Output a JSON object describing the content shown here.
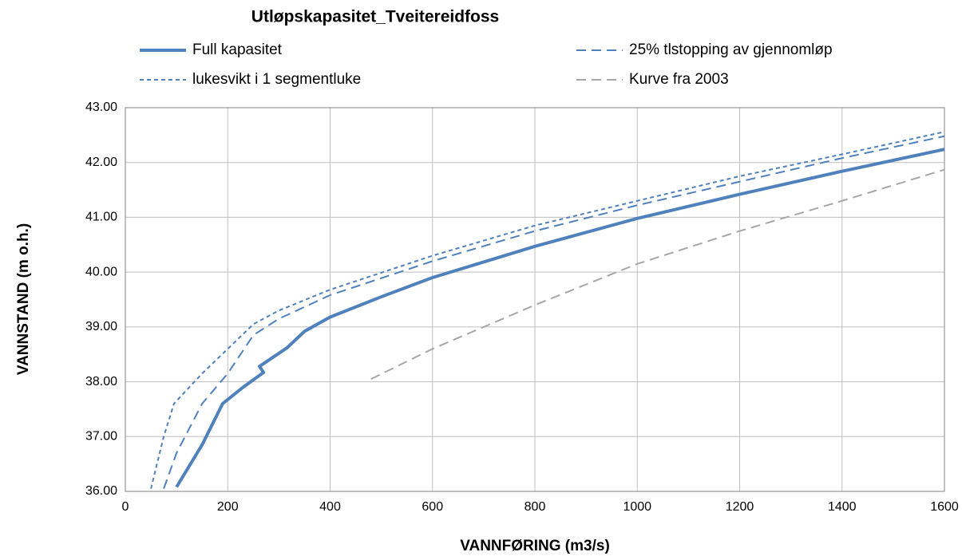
{
  "chart_data": {
    "type": "line",
    "title": "Utløpskapasitet_Tveitereidfoss",
    "x_label": "VANNFØRING (m3/s)",
    "y_label": "VANNSTAND (m o.h.)",
    "xlim": [
      0,
      1600
    ],
    "xticks": [
      0,
      200,
      400,
      600,
      800,
      1000,
      1200,
      1400,
      1600
    ],
    "ylim": [
      36,
      43
    ],
    "yticks": [
      {
        "value": 36,
        "label": "36.00"
      },
      {
        "value": 37,
        "label": "37.00"
      },
      {
        "value": 38,
        "label": "38.00"
      },
      {
        "value": 39,
        "label": "39.00"
      },
      {
        "value": 40,
        "label": "40.00"
      },
      {
        "value": 41,
        "label": "41.00"
      },
      {
        "value": 42,
        "label": "42.00"
      },
      {
        "value": 43,
        "label": "43.00"
      }
    ],
    "grid": true,
    "legend": "top",
    "series": [
      {
        "name": "Full kapasitet",
        "color": "#4f81bd",
        "dash": "solid",
        "x": [
          100,
          150,
          190,
          230,
          270,
          262,
          316,
          350,
          400,
          500,
          600,
          800,
          1000,
          1200,
          1400,
          1600
        ],
        "values": [
          36.08,
          36.85,
          37.6,
          37.9,
          38.17,
          38.28,
          38.62,
          38.92,
          39.18,
          39.55,
          39.9,
          40.47,
          40.98,
          41.42,
          41.84,
          42.24
        ]
      },
      {
        "name": "25% tlstopping av gjennomløp",
        "color": "#4f81bd",
        "dash": "long",
        "x": [
          75,
          100,
          150,
          200,
          250,
          300,
          400,
          600,
          800,
          1000,
          1200,
          1400,
          1600
        ],
        "values": [
          36.05,
          36.7,
          37.6,
          38.15,
          38.85,
          39.15,
          39.58,
          40.2,
          40.75,
          41.22,
          41.65,
          42.08,
          42.48
        ]
      },
      {
        "name": "lukesvikt i 1 segmentluke",
        "color": "#4f81bd",
        "dash": "short",
        "x": [
          50,
          75,
          95,
          150,
          200,
          250,
          300,
          400,
          600,
          800,
          1000,
          1200,
          1400,
          1600
        ],
        "values": [
          36.05,
          37.0,
          37.6,
          38.15,
          38.6,
          39.05,
          39.3,
          39.68,
          40.3,
          40.85,
          41.3,
          41.75,
          42.15,
          42.56
        ]
      },
      {
        "name": "Kurve fra 2003",
        "color": "#a6a6a6",
        "dash": "long",
        "x": [
          480,
          600,
          800,
          1000,
          1200,
          1400,
          1600
        ],
        "values": [
          38.05,
          38.6,
          39.4,
          40.15,
          40.75,
          41.3,
          41.87
        ]
      }
    ]
  }
}
